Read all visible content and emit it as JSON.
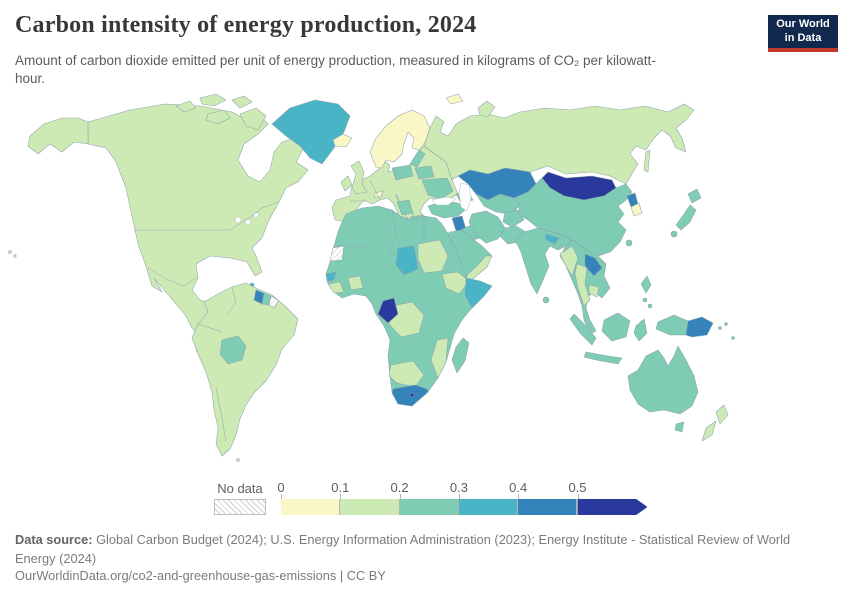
{
  "header": {
    "title": "Carbon intensity of energy production, 2024",
    "subtitle": "Amount of carbon dioxide emitted per unit of energy production, measured in kilograms of CO₂ per kilowatt-hour.",
    "logo": {
      "line1": "Our World",
      "line2": "in Data",
      "bg_color": "#10294c",
      "accent_color": "#c0392b"
    }
  },
  "legend": {
    "no_data_label": "No data",
    "tick_labels": [
      "0",
      "0.1",
      "0.2",
      "0.3",
      "0.4",
      "0.5"
    ],
    "bins": [
      {
        "key": "b1",
        "label": "0–0.1",
        "color": "#f9f7c5"
      },
      {
        "key": "b2",
        "label": "0.1–0.2",
        "color": "#cdeab5"
      },
      {
        "key": "b3",
        "label": "0.2–0.3",
        "color": "#7fccb4"
      },
      {
        "key": "b4",
        "label": "0.3–0.4",
        "color": "#49b4c6"
      },
      {
        "key": "b5",
        "label": "0.4–0.5",
        "color": "#3583bb"
      },
      {
        "key": "b6",
        "label": "0.5+",
        "color": "#293a9c"
      }
    ]
  },
  "footer": {
    "source_label": "Data source:",
    "source_line1": "Global Carbon Budget (2024); U.S. Energy Information Administration (2023); Energy Institute - Statistical Review of World",
    "source_line2": "Energy (2024)",
    "link_line": "OurWorldinData.org/co2-and-greenhouse-gas-emissions | CC BY"
  },
  "chart_data": {
    "type": "choropleth_map",
    "title": "Carbon intensity of energy production, 2024",
    "unit": "kilograms of CO₂ per kilowatt-hour",
    "year": "2024",
    "bin_ranges": [
      "0–0.1",
      "0.1–0.2",
      "0.2–0.3",
      "0.3–0.4",
      "0.4–0.5",
      "0.5+",
      "No data"
    ],
    "palette": {
      "b1": "#f9f7c5",
      "b2": "#cdeab5",
      "b3": "#7fccb4",
      "b4": "#49b4c6",
      "b5": "#3583bb",
      "b6": "#293a9c",
      "nd": "#ffffff"
    },
    "regions": {
      "north-america": "b2",
      "alaska": "b2",
      "arctic-islands": "b2",
      "greenland": "b4",
      "cuba": "b2",
      "hispaniola": "b4",
      "jamaica": "b3",
      "puerto-rico": "b4",
      "bahamas": "b2",
      "trinidad": "b4",
      "guatemala": "b3",
      "nicaragua": "b3",
      "panama": "b3",
      "south-america": "b2",
      "bolivia": "b3",
      "guyana": "b5",
      "suriname": "b3",
      "french-guiana": "nd",
      "falkland-islands": "b2",
      "europe": "b2",
      "uk": "b2",
      "ireland": "b2",
      "iceland": "b1",
      "scandinavia": "b1",
      "svalbard": "b1",
      "poland": "b3",
      "baltics": "b3",
      "belarus": "b3",
      "ukraine": "b3",
      "balkans": "b3",
      "greece": "b3",
      "switzerland": "b1",
      "russia": "b2",
      "novaya-zemlya": "b2",
      "sakhalin": "b2",
      "kazakhstan": "b5",
      "central-asia": "b3",
      "mongolia": "b6",
      "china": "b3",
      "taiwan": "b3",
      "korea-north": "b5",
      "korea-south": "b1",
      "japan": "b3",
      "turkey": "b3",
      "caucasus": "b3",
      "syria": "b5",
      "iraq": "b3",
      "iran": "b3",
      "afghanistan": "b3",
      "pakistan": "b3",
      "arabia": "b3",
      "yemen-oman": "b2",
      "india": "b3",
      "nepal": "b4",
      "sri-lanka": "b3",
      "se-asia": "b3",
      "myanmar": "b2",
      "thailand": "b2",
      "laos": "b5",
      "cambodia": "b2",
      "sumatra": "b3",
      "java": "b3",
      "borneo": "b3",
      "sulawesi": "b3",
      "philippines": "b3",
      "new-guinea-west": "b3",
      "papua-new-guinea": "b5",
      "melanesia": "b3",
      "australia": "b3",
      "tasmania": "b3",
      "new-zealand": "b2",
      "africa": "b3",
      "western-sahara": "nd",
      "senegal": "b4",
      "guinea": "b2",
      "burkina-benin": "b2",
      "chad": "b4",
      "sudan": "b2",
      "ethiopia": "b2",
      "somalia": "b4",
      "drc": "b2",
      "congo": "b6",
      "mozambique": "b2",
      "namibia-botswana": "b2",
      "south-africa": "b5",
      "lesotho": "b6",
      "madagascar": "b3",
      "hawaii": "b2"
    }
  }
}
